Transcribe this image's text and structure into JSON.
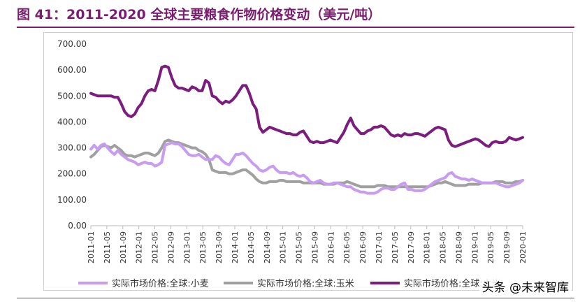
{
  "header": {
    "title": "图 41：2011-2020 全球主要粮食作物价格变动（美元/吨）"
  },
  "watermark": "头条 @未来智库",
  "chart_data": {
    "type": "line",
    "ylim": [
      0,
      700
    ],
    "yticks": [
      "0.00",
      "100.00",
      "200.00",
      "300.00",
      "400.00",
      "500.00",
      "600.00",
      "700.00"
    ],
    "xticks": [
      "2011-01",
      "2011-05",
      "2011-09",
      "2012-01",
      "2012-05",
      "2012-09",
      "2013-01",
      "2013-05",
      "2013-09",
      "2014-01",
      "2014-05",
      "2014-09",
      "2015-01",
      "2015-05",
      "2015-09",
      "2016-01",
      "2016-05",
      "2016-09",
      "2017-01",
      "2017-05",
      "2017-09",
      "2018-01",
      "2018-05",
      "2018-09",
      "2019-01",
      "2019-05",
      "2019-09",
      "2020-01"
    ],
    "legend_position": "bottom",
    "series": [
      {
        "name": "实际市场价格:全球:小麦",
        "color": "#c89cf0",
        "values": [
          295,
          310,
          295,
          310,
          315,
          300,
          285,
          275,
          290,
          275,
          265,
          255,
          250,
          245,
          235,
          240,
          245,
          240,
          240,
          230,
          235,
          245,
          310,
          315,
          320,
          315,
          315,
          305,
          290,
          275,
          270,
          270,
          275,
          265,
          255,
          255,
          255,
          270,
          265,
          250,
          240,
          235,
          255,
          275,
          275,
          280,
          270,
          255,
          240,
          230,
          215,
          210,
          215,
          225,
          230,
          215,
          205,
          205,
          205,
          200,
          205,
          195,
          190,
          195,
          185,
          170,
          165,
          170,
          175,
          165,
          160,
          160,
          165,
          165,
          160,
          155,
          150,
          150,
          140,
          135,
          130,
          130,
          125,
          125,
          125,
          130,
          140,
          145,
          145,
          140,
          140,
          150,
          160,
          165,
          140,
          140,
          135,
          135,
          135,
          140,
          150,
          160,
          170,
          175,
          180,
          185,
          200,
          205,
          190,
          185,
          180,
          180,
          175,
          180,
          175,
          170,
          165,
          165,
          165,
          165,
          165,
          160,
          155,
          150,
          150,
          155,
          160,
          165,
          175
        ]
      },
      {
        "name": "实际市场价格:全球:玉米",
        "color": "#a0a0a0",
        "values": [
          265,
          275,
          290,
          305,
          310,
          305,
          300,
          310,
          300,
          290,
          275,
          270,
          270,
          265,
          270,
          275,
          280,
          280,
          275,
          270,
          280,
          300,
          325,
          330,
          325,
          320,
          320,
          315,
          310,
          305,
          300,
          300,
          290,
          285,
          275,
          255,
          215,
          210,
          205,
          205,
          205,
          200,
          200,
          205,
          210,
          215,
          215,
          205,
          195,
          180,
          170,
          165,
          165,
          170,
          170,
          170,
          175,
          175,
          170,
          170,
          170,
          170,
          170,
          165,
          165,
          165,
          165,
          165,
          165,
          160,
          160,
          160,
          160,
          165,
          165,
          165,
          170,
          165,
          160,
          155,
          150,
          150,
          150,
          150,
          150,
          155,
          155,
          155,
          150,
          150,
          150,
          150,
          150,
          150,
          150,
          150,
          150,
          150,
          150,
          150,
          150,
          155,
          160,
          165,
          165,
          170,
          165,
          160,
          155,
          155,
          155,
          155,
          160,
          160,
          160,
          160,
          165,
          165,
          165,
          165,
          170,
          170,
          170,
          165,
          165,
          165,
          170,
          170,
          175
        ]
      },
      {
        "name": "实际市场价格:全球:大米",
        "color": "#7b1c7e",
        "values": [
          510,
          505,
          500,
          500,
          500,
          500,
          500,
          495,
          495,
          470,
          440,
          425,
          420,
          430,
          455,
          470,
          500,
          520,
          525,
          520,
          560,
          610,
          615,
          610,
          570,
          540,
          530,
          530,
          525,
          520,
          535,
          530,
          520,
          520,
          560,
          550,
          500,
          495,
          480,
          470,
          480,
          475,
          485,
          500,
          520,
          540,
          540,
          510,
          470,
          450,
          380,
          360,
          370,
          380,
          375,
          370,
          365,
          360,
          355,
          355,
          350,
          350,
          360,
          365,
          345,
          325,
          320,
          325,
          320,
          320,
          325,
          330,
          325,
          320,
          340,
          360,
          390,
          415,
          385,
          370,
          355,
          355,
          365,
          370,
          380,
          380,
          385,
          380,
          365,
          350,
          345,
          350,
          345,
          355,
          350,
          350,
          355,
          355,
          350,
          345,
          355,
          365,
          375,
          380,
          375,
          370,
          330,
          310,
          305,
          310,
          315,
          320,
          325,
          330,
          335,
          330,
          320,
          310,
          305,
          320,
          325,
          320,
          320,
          325,
          340,
          335,
          330,
          335,
          340
        ]
      }
    ]
  }
}
